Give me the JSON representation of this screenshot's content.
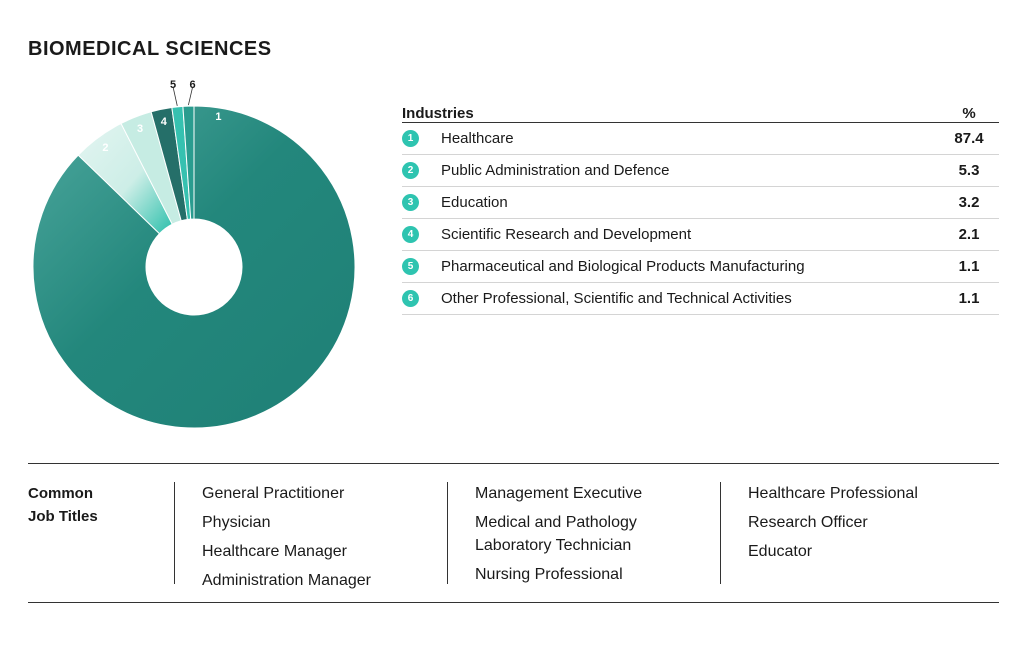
{
  "title": "BIOMEDICAL SCIENCES",
  "table": {
    "header_label": "Industries",
    "header_value": "%",
    "rows": [
      {
        "num": "1",
        "label": "Healthcare",
        "value": "87.4"
      },
      {
        "num": "2",
        "label": "Public Administration and Defence",
        "value": "5.3"
      },
      {
        "num": "3",
        "label": "Education",
        "value": "3.2"
      },
      {
        "num": "4",
        "label": "Scientific Research and Development",
        "value": "2.1"
      },
      {
        "num": "5",
        "label": "Pharmaceutical and Biological Products Manufacturing",
        "value": "1.1"
      },
      {
        "num": "6",
        "label": "Other Professional, Scientific and Technical Activities",
        "value": "1.1"
      }
    ]
  },
  "jobs": {
    "label": "Common\nJob Titles",
    "columns": [
      [
        "General Practitioner",
        "Physician",
        "Healthcare Manager",
        "Administration Manager"
      ],
      [
        "Management Executive",
        "Medical and Pathology\nLaboratory Technician",
        "Nursing Professional"
      ],
      [
        "Healthcare Professional",
        "Research Officer",
        "Educator"
      ]
    ]
  },
  "chart_data": {
    "type": "pie",
    "donut": true,
    "categories": [
      "1",
      "2",
      "3",
      "4",
      "5",
      "6"
    ],
    "values": [
      87.4,
      5.3,
      3.2,
      2.1,
      1.1,
      1.1
    ],
    "colors": [
      "#23877c",
      "#2bbfab",
      "#c6ece3",
      "#256f69",
      "#36c1b0",
      "#2a9c8f"
    ]
  }
}
